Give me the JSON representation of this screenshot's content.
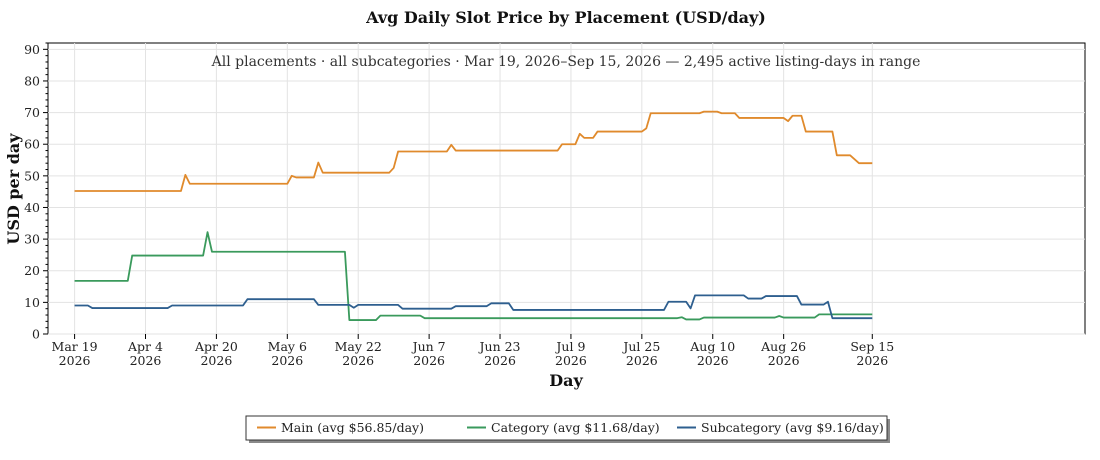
{
  "chart_data": {
    "type": "line",
    "title": "Avg Daily Slot Price by Placement (USD/day)",
    "subtitle": "All placements · all subcategories · Mar 19, 2026–Sep 15, 2026 — 2,495 active listing-days in range",
    "xlabel": "Day",
    "ylabel": "USD per day",
    "xlim": [
      "2026-03-13",
      "2026-11-02"
    ],
    "ylim": [
      0,
      92
    ],
    "yticks": [
      0,
      10,
      20,
      30,
      40,
      50,
      60,
      70,
      80,
      90
    ],
    "xticks": [
      {
        "date": "2026-03-19",
        "line1": "Mar 19",
        "line2": "2026"
      },
      {
        "date": "2026-04-04",
        "line1": "Apr 4",
        "line2": "2026"
      },
      {
        "date": "2026-04-20",
        "line1": "Apr 20",
        "line2": "2026"
      },
      {
        "date": "2026-05-06",
        "line1": "May 6",
        "line2": "2026"
      },
      {
        "date": "2026-05-22",
        "line1": "May 22",
        "line2": "2026"
      },
      {
        "date": "2026-06-07",
        "line1": "Jun 7",
        "line2": "2026"
      },
      {
        "date": "2026-06-23",
        "line1": "Jun 23",
        "line2": "2026"
      },
      {
        "date": "2026-07-09",
        "line1": "Jul 9",
        "line2": "2026"
      },
      {
        "date": "2026-07-25",
        "line1": "Jul 25",
        "line2": "2026"
      },
      {
        "date": "2026-08-10",
        "line1": "Aug 10",
        "line2": "2026"
      },
      {
        "date": "2026-08-26",
        "line1": "Aug 26",
        "line2": "2026"
      },
      {
        "date": "2026-09-15",
        "line1": "Sep 15",
        "line2": "2026"
      }
    ],
    "grid": true,
    "legend_position": "bottom-center",
    "series": [
      {
        "name": "Main (avg $56.85/day)",
        "color": "#e08a2c",
        "points": [
          [
            "2026-03-19",
            45.2
          ],
          [
            "2026-03-26",
            45.2
          ],
          [
            "2026-04-02",
            45.2
          ],
          [
            "2026-04-09",
            45.2
          ],
          [
            "2026-04-12",
            45.2
          ],
          [
            "2026-04-13",
            50.3
          ],
          [
            "2026-04-14",
            47.5
          ],
          [
            "2026-04-20",
            47.5
          ],
          [
            "2026-04-28",
            47.5
          ],
          [
            "2026-05-06",
            47.5
          ],
          [
            "2026-05-07",
            50.0
          ],
          [
            "2026-05-08",
            49.5
          ],
          [
            "2026-05-12",
            49.5
          ],
          [
            "2026-05-13",
            54.2
          ],
          [
            "2026-05-14",
            51.0
          ],
          [
            "2026-05-22",
            51.0
          ],
          [
            "2026-05-29",
            51.0
          ],
          [
            "2026-05-30",
            52.5
          ],
          [
            "2026-05-31",
            57.7
          ],
          [
            "2026-06-07",
            57.7
          ],
          [
            "2026-06-11",
            57.7
          ],
          [
            "2026-06-12",
            59.8
          ],
          [
            "2026-06-13",
            58.0
          ],
          [
            "2026-06-23",
            58.0
          ],
          [
            "2026-07-06",
            58.0
          ],
          [
            "2026-07-07",
            60.0
          ],
          [
            "2026-07-08",
            60.0
          ],
          [
            "2026-07-08",
            60.0
          ],
          [
            "2026-07-10",
            60.0
          ],
          [
            "2026-07-11",
            63.3
          ],
          [
            "2026-07-12",
            62.0
          ],
          [
            "2026-07-14",
            62.0
          ],
          [
            "2026-07-15",
            64.0
          ],
          [
            "2026-07-22",
            64.0
          ],
          [
            "2026-07-25",
            64.0
          ],
          [
            "2026-07-26",
            65.0
          ],
          [
            "2026-07-27",
            69.8
          ],
          [
            "2026-08-02",
            69.8
          ],
          [
            "2026-08-07",
            69.8
          ],
          [
            "2026-08-08",
            70.3
          ],
          [
            "2026-08-10",
            70.3
          ],
          [
            "2026-08-11",
            70.3
          ],
          [
            "2026-08-12",
            69.8
          ],
          [
            "2026-08-15",
            69.8
          ],
          [
            "2026-08-16",
            68.3
          ],
          [
            "2026-08-21",
            68.3
          ],
          [
            "2026-08-26",
            68.3
          ],
          [
            "2026-08-27",
            67.3
          ],
          [
            "2026-08-28",
            69.0
          ],
          [
            "2026-08-30",
            69.0
          ],
          [
            "2026-08-31",
            64.0
          ],
          [
            "2026-09-06",
            64.0
          ],
          [
            "2026-09-07",
            56.5
          ],
          [
            "2026-09-10",
            56.5
          ],
          [
            "2026-09-12",
            54.0
          ],
          [
            "2026-09-15",
            54.0
          ]
        ]
      },
      {
        "name": "Category (avg $11.68/day)",
        "color": "#3a9a5c",
        "points": [
          [
            "2026-03-19",
            16.8
          ],
          [
            "2026-03-24",
            16.8
          ],
          [
            "2026-03-31",
            16.8
          ],
          [
            "2026-04-01",
            24.8
          ],
          [
            "2026-04-09",
            24.8
          ],
          [
            "2026-04-16",
            24.8
          ],
          [
            "2026-04-17",
            24.8
          ],
          [
            "2026-04-18",
            32.2
          ],
          [
            "2026-04-19",
            26.0
          ],
          [
            "2026-04-28",
            26.0
          ],
          [
            "2026-05-06",
            26.0
          ],
          [
            "2026-05-14",
            26.0
          ],
          [
            "2026-05-19",
            26.0
          ],
          [
            "2026-05-20",
            4.4
          ],
          [
            "2026-05-26",
            4.4
          ],
          [
            "2026-05-27",
            5.8
          ],
          [
            "2026-06-05",
            5.8
          ],
          [
            "2026-06-06",
            5.0
          ],
          [
            "2026-06-16",
            5.0
          ],
          [
            "2026-06-23",
            5.0
          ],
          [
            "2026-07-09",
            5.0
          ],
          [
            "2026-07-25",
            5.0
          ],
          [
            "2026-08-02",
            5.0
          ],
          [
            "2026-08-03",
            5.3
          ],
          [
            "2026-08-04",
            4.6
          ],
          [
            "2026-08-07",
            4.6
          ],
          [
            "2026-08-08",
            5.2
          ],
          [
            "2026-08-10",
            5.2
          ],
          [
            "2026-08-24",
            5.2
          ],
          [
            "2026-08-25",
            5.7
          ],
          [
            "2026-08-26",
            5.2
          ],
          [
            "2026-09-02",
            5.2
          ],
          [
            "2026-09-03",
            6.2
          ],
          [
            "2026-09-09",
            6.2
          ],
          [
            "2026-09-15",
            6.2
          ]
        ]
      },
      {
        "name": "Subcategory (avg $9.16/day)",
        "color": "#2e5f8f",
        "points": [
          [
            "2026-03-19",
            9.0
          ],
          [
            "2026-03-22",
            9.0
          ],
          [
            "2026-03-23",
            8.2
          ],
          [
            "2026-04-04",
            8.2
          ],
          [
            "2026-04-09",
            8.2
          ],
          [
            "2026-04-10",
            9.0
          ],
          [
            "2026-04-20",
            9.0
          ],
          [
            "2026-04-26",
            9.0
          ],
          [
            "2026-04-27",
            11.0
          ],
          [
            "2026-05-06",
            11.0
          ],
          [
            "2026-05-12",
            11.0
          ],
          [
            "2026-05-13",
            9.2
          ],
          [
            "2026-05-20",
            9.2
          ],
          [
            "2026-05-21",
            8.3
          ],
          [
            "2026-05-22",
            9.2
          ],
          [
            "2026-05-31",
            9.2
          ],
          [
            "2026-06-01",
            8.0
          ],
          [
            "2026-06-07",
            8.0
          ],
          [
            "2026-06-12",
            8.0
          ],
          [
            "2026-06-13",
            8.8
          ],
          [
            "2026-06-20",
            8.8
          ],
          [
            "2026-06-21",
            9.7
          ],
          [
            "2026-06-25",
            9.7
          ],
          [
            "2026-06-26",
            7.6
          ],
          [
            "2026-07-09",
            7.6
          ],
          [
            "2026-07-25",
            7.6
          ],
          [
            "2026-07-30",
            7.6
          ],
          [
            "2026-07-31",
            10.2
          ],
          [
            "2026-08-04",
            10.2
          ],
          [
            "2026-08-05",
            8.1
          ],
          [
            "2026-08-06",
            12.2
          ],
          [
            "2026-08-10",
            12.2
          ],
          [
            "2026-08-17",
            12.2
          ],
          [
            "2026-08-18",
            11.2
          ],
          [
            "2026-08-21",
            11.2
          ],
          [
            "2026-08-22",
            12.0
          ],
          [
            "2026-08-29",
            12.0
          ],
          [
            "2026-08-30",
            9.3
          ],
          [
            "2026-09-04",
            9.3
          ],
          [
            "2026-09-05",
            10.2
          ],
          [
            "2026-09-06",
            5.0
          ],
          [
            "2026-09-10",
            5.0
          ],
          [
            "2026-09-15",
            5.0
          ]
        ]
      }
    ]
  }
}
